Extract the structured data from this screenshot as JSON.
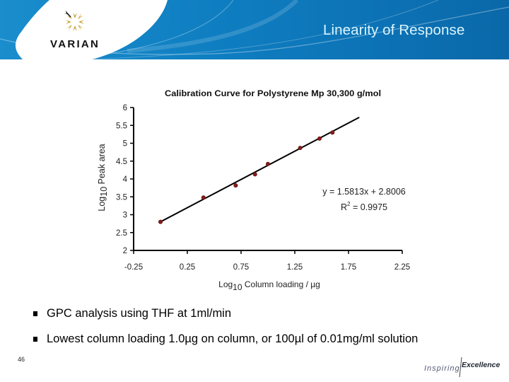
{
  "header": {
    "title": "Linearity of Response",
    "brand": "VARIAN",
    "colors": {
      "banner": "#0f7fc2",
      "title_text": "#d9f5ff",
      "logo_gold": "#c9a030"
    }
  },
  "chart_data": {
    "type": "scatter",
    "title": "Calibration Curve for Polystyrene Mp 30,300 g/mol",
    "xlabel": "Log10 Column loading / µg",
    "xlabel_parts": {
      "prefix": "Log",
      "sub": "10",
      "suffix": " Column loading / µg"
    },
    "ylabel": "Log10 Peak area",
    "ylabel_parts": {
      "prefix": "Log",
      "sub": "10",
      "suffix": " Peak area"
    },
    "xlim": [
      -0.25,
      2.25
    ],
    "ylim": [
      2,
      6
    ],
    "xticks": [
      "-0.25",
      "0.25",
      "0.75",
      "1.25",
      "1.75",
      "2.25"
    ],
    "yticks": [
      "2",
      "2.5",
      "3",
      "3.5",
      "4",
      "4.5",
      "5",
      "5.5",
      "6"
    ],
    "grid": false,
    "legend": "none",
    "series": [
      {
        "name": "Calibration points",
        "color": "#8b1a1a",
        "x": [
          0.0,
          0.4,
          0.7,
          0.88,
          1.0,
          1.3,
          1.48,
          1.6
        ],
        "y": [
          2.8,
          3.48,
          3.82,
          4.13,
          4.42,
          4.87,
          5.13,
          5.3
        ]
      }
    ],
    "trendline": {
      "type": "linear",
      "slope": 1.5813,
      "intercept": 2.8006,
      "x_range": [
        0.0,
        1.85
      ],
      "color": "#000000",
      "equation": "y = 1.5813x + 2.8006",
      "r2_prefix": "R",
      "r2_sup": "2",
      "r2_value": " = 0.9975"
    }
  },
  "bullets": [
    {
      "text": "GPC analysis using THF at 1ml/min"
    },
    {
      "text": "Lowest column loading 1.0µg on column, or 100µl of 0.01mg/ml solution"
    }
  ],
  "footer": {
    "page_number": "46",
    "tagline_word1": "Inspiring",
    "tagline_word2": "Excellence"
  }
}
